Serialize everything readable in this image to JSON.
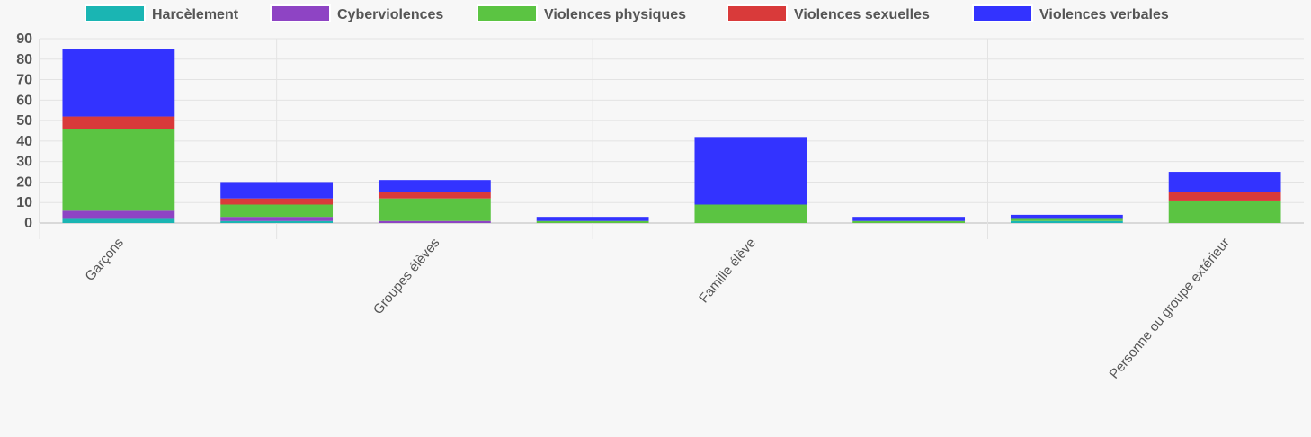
{
  "chart_data": {
    "type": "bar",
    "stacked": true,
    "title": "",
    "xlabel": "",
    "ylabel": "",
    "ylim": [
      0,
      90
    ],
    "yticks": [
      0,
      10,
      20,
      30,
      40,
      50,
      60,
      70,
      80,
      90
    ],
    "legend_position": "top",
    "grid": true,
    "categories": [
      "Garçons",
      "",
      "Groupes élèves",
      "",
      "Famille élève",
      "",
      "",
      "Personne ou groupe extérieur"
    ],
    "series": [
      {
        "name": "Harcèlement",
        "color": "#1ab5b3",
        "values": [
          2,
          1,
          0,
          0,
          0,
          0,
          1,
          0
        ]
      },
      {
        "name": "Cyberviolences",
        "color": "#8e44c4",
        "values": [
          4,
          2,
          1,
          0,
          0,
          0,
          0,
          0
        ]
      },
      {
        "name": "Violences physiques",
        "color": "#5bc442",
        "values": [
          40,
          6,
          11,
          1,
          9,
          1,
          1,
          11
        ]
      },
      {
        "name": "Violences sexuelles",
        "color": "#d93a3a",
        "values": [
          6,
          3,
          3,
          0,
          0,
          0,
          0,
          4
        ]
      },
      {
        "name": "Violences verbales",
        "color": "#3333ff",
        "values": [
          33,
          8,
          6,
          2,
          33,
          2,
          2,
          10
        ]
      }
    ]
  }
}
